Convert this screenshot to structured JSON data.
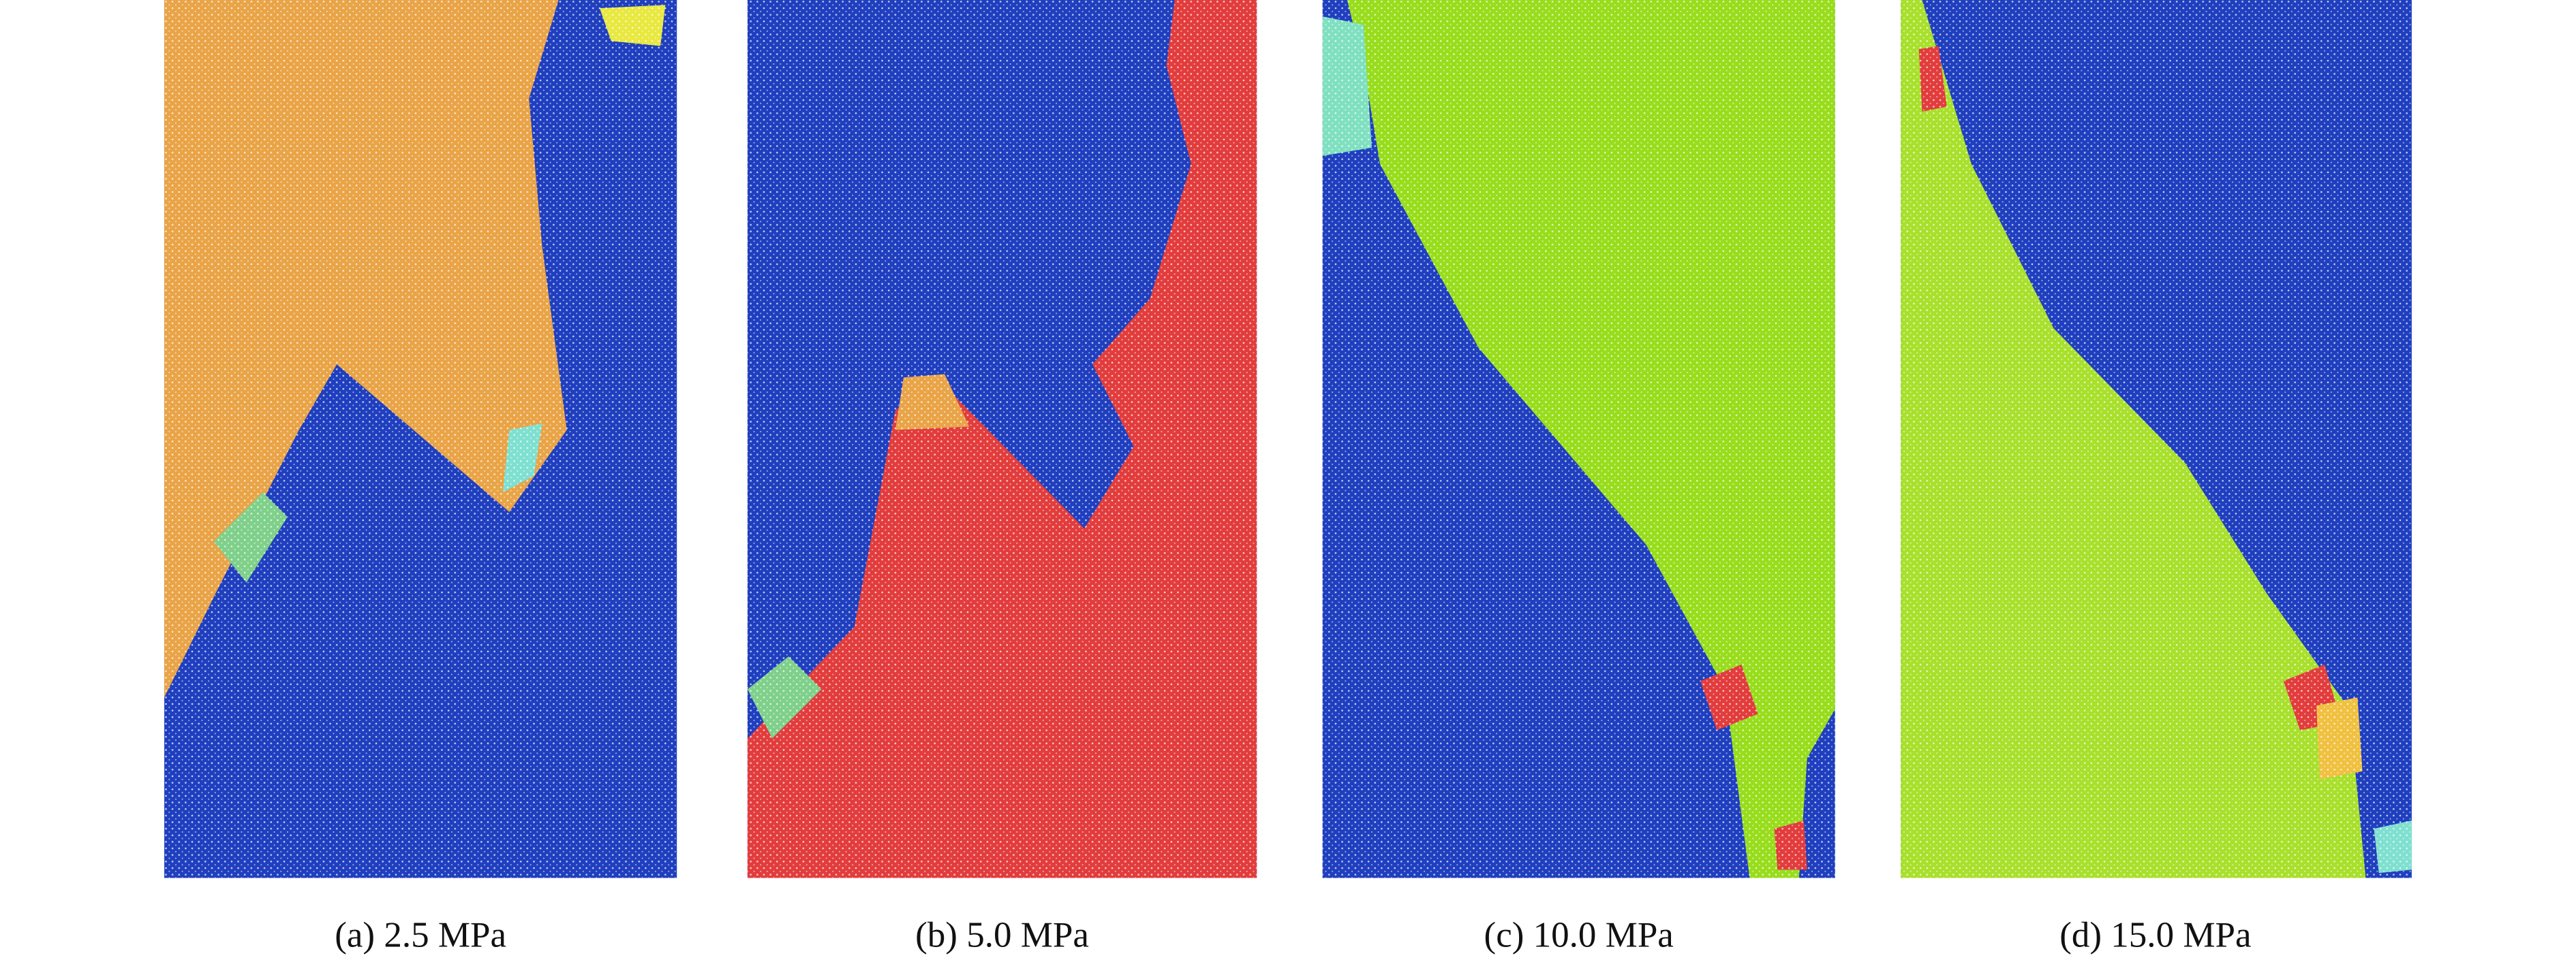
{
  "panels": [
    {
      "caption": "(a) 2.5 MPa"
    },
    {
      "caption": "(b) 5.0 MPa"
    },
    {
      "caption": "(c) 10.0 MPa"
    },
    {
      "caption": "(d) 15.0 MPa"
    }
  ]
}
